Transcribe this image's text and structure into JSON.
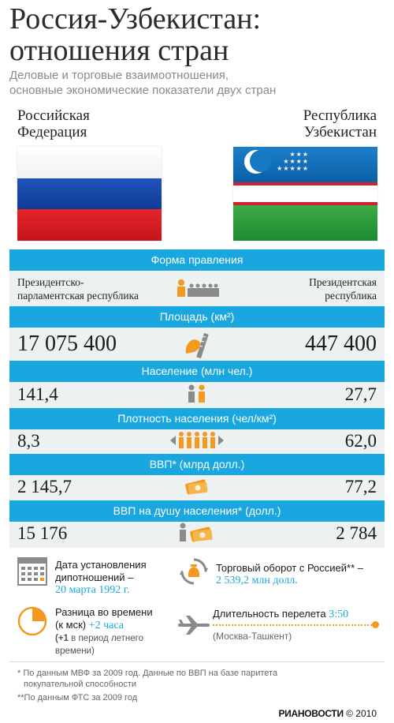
{
  "header": {
    "title_line1": "Россия-Узбекистан:",
    "title_line2": "отношения стран",
    "subtitle_line1": "Деловые и торговые взаимоотношения,",
    "subtitle_line2": "основные экономические показатели двух стран"
  },
  "countries": {
    "left_line1": "Российская",
    "left_line2": "Федерация",
    "right_line1": "Республика",
    "right_line2": "Узбекистан"
  },
  "rows": {
    "government": {
      "label": "Форма правления",
      "left_line1": "Президентско-",
      "left_line2": "парламентская республика",
      "right_line1": "Президентская",
      "right_line2": "республика"
    },
    "area": {
      "label": "Площадь (км²)",
      "left": "17 075 400",
      "right": "447 400"
    },
    "population": {
      "label": "Население (млн чел.)",
      "left": "141,4",
      "right": "27,7"
    },
    "density": {
      "label": "Плотность населения (чел/км²)",
      "left": "8,3",
      "right": "62,0"
    },
    "gdp": {
      "label": "ВВП* (млрд долл.)",
      "left": "2 145,7",
      "right": "77,2"
    },
    "gdp_per_capita": {
      "label": "ВВП на душу населения* (долл.)",
      "left": "15 176",
      "right": "2 784"
    }
  },
  "facts": {
    "relations_label_line1": "Дата установления",
    "relations_label_line2": "дипотношений –",
    "relations_date": "20 марта 1992 г.",
    "trade_label": "Торговый оборот с Россией** –",
    "trade_value": "2 539,2 млн долл.",
    "time_label_line1": "Разница во времени",
    "time_label_line2": "(к мск)",
    "time_value": "+2 часа",
    "time_note_bold": "(+1",
    "time_note_rest": " в период летнего",
    "time_note_line2": "времени)",
    "flight_label": "Длительность перелета",
    "flight_value": "3:50",
    "flight_route": "(Москва-Ташкент)"
  },
  "footnotes": {
    "note1_line1": "* По данным МВФ за 2009 год. Данные по ВВП на базе паритета",
    "note1_line2": "покупательной способности",
    "note2": "**По данным ФТС за 2009 год"
  },
  "brand": {
    "name": "РИАНОВОСТИ",
    "copyright": "© 2010"
  },
  "colors": {
    "accent": "#1aa7e0",
    "icon_orange": "#f39a1e",
    "panel": "#eef1f2"
  }
}
